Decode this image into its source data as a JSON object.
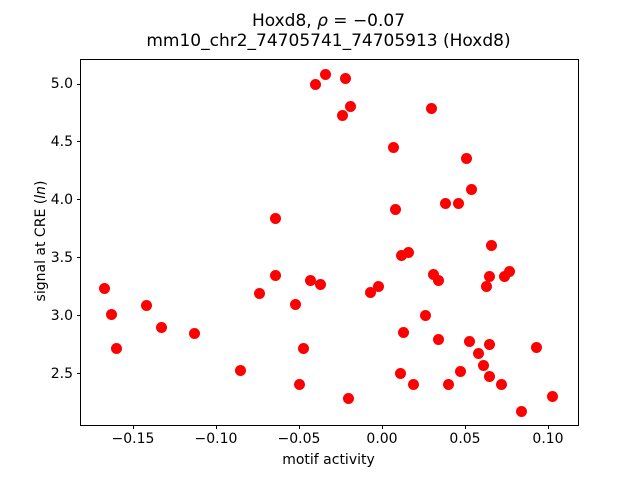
{
  "figure": {
    "title_prefix": "Hoxd8, ",
    "title_rho": "ρ",
    "title_rest": " = −0.07",
    "subtitle": "mm10_chr2_74705741_74705913 (Hoxd8)"
  },
  "chart_data": {
    "type": "scatter",
    "title": "Hoxd8, ρ = −0.07",
    "subtitle": "mm10_chr2_74705741_74705913 (Hoxd8)",
    "rho": -0.07,
    "xlabel": "motif activity",
    "ylabel": "signal at CRE (ln)",
    "ylabel_parts": {
      "pre": "signal at CRE (",
      "italic": "ln",
      "post": ")"
    },
    "marker_color": "#ff0000",
    "grid": false,
    "legend": null,
    "xlim": [
      -0.18133,
      0.11807
    ],
    "ylim": [
      2.0603,
      5.2069
    ],
    "xticks": [
      -0.15,
      -0.1,
      -0.05,
      0.0,
      0.05,
      0.1
    ],
    "xtick_labels": [
      "−0.15",
      "−0.10",
      "−0.05",
      "0.00",
      "0.05",
      "0.10"
    ],
    "yticks": [
      2.5,
      3.0,
      3.5,
      4.0,
      4.5,
      5.0
    ],
    "ytick_labels": [
      "2.5",
      "3.0",
      "3.5",
      "4.0",
      "4.5",
      "5.0"
    ],
    "points": [
      [
        -0.04,
        5.0
      ],
      [
        -0.034,
        5.08
      ],
      [
        -0.022,
        5.05
      ],
      [
        -0.019,
        4.81
      ],
      [
        -0.024,
        4.73
      ],
      [
        0.03,
        4.79
      ],
      [
        0.007,
        4.45
      ],
      [
        0.008,
        3.92
      ],
      [
        -0.064,
        3.84
      ],
      [
        0.038,
        3.97
      ],
      [
        0.046,
        3.97
      ],
      [
        0.051,
        4.36
      ],
      [
        0.054,
        4.09
      ],
      [
        0.066,
        3.61
      ],
      [
        -0.167,
        3.24
      ],
      [
        -0.163,
        3.01
      ],
      [
        -0.142,
        3.09
      ],
      [
        -0.133,
        2.9
      ],
      [
        -0.16,
        2.72
      ],
      [
        -0.113,
        2.85
      ],
      [
        -0.085,
        2.53
      ],
      [
        -0.064,
        3.35
      ],
      [
        -0.074,
        3.19
      ],
      [
        -0.043,
        3.31
      ],
      [
        -0.037,
        3.27
      ],
      [
        -0.052,
        3.1
      ],
      [
        -0.007,
        3.2
      ],
      [
        -0.002,
        3.25
      ],
      [
        0.012,
        3.52
      ],
      [
        0.016,
        3.55
      ],
      [
        0.031,
        3.36
      ],
      [
        0.034,
        3.31
      ],
      [
        0.026,
        3.0
      ],
      [
        0.013,
        2.86
      ],
      [
        0.034,
        2.8
      ],
      [
        -0.047,
        2.72
      ],
      [
        0.011,
        2.5
      ],
      [
        0.019,
        2.41
      ],
      [
        -0.05,
        2.41
      ],
      [
        -0.02,
        2.29
      ],
      [
        0.065,
        3.34
      ],
      [
        0.074,
        3.34
      ],
      [
        0.077,
        3.38
      ],
      [
        0.063,
        3.25
      ],
      [
        0.053,
        2.78
      ],
      [
        0.065,
        2.75
      ],
      [
        0.058,
        2.68
      ],
      [
        0.093,
        2.73
      ],
      [
        0.061,
        2.57
      ],
      [
        0.047,
        2.52
      ],
      [
        0.065,
        2.48
      ],
      [
        0.072,
        2.41
      ],
      [
        0.04,
        2.41
      ],
      [
        0.103,
        2.31
      ],
      [
        0.084,
        2.18
      ]
    ]
  }
}
